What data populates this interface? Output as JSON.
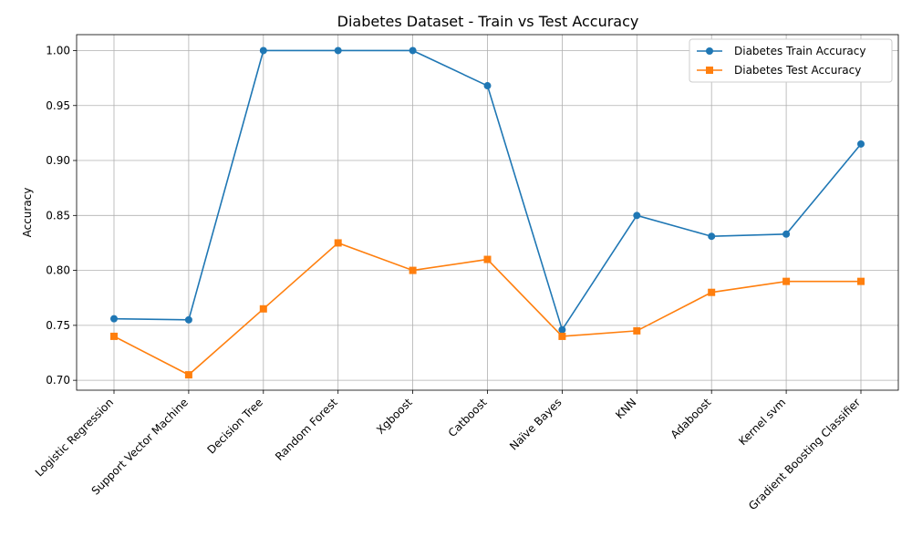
{
  "chart_data": {
    "type": "line",
    "title": "Diabetes Dataset - Train vs Test Accuracy",
    "xlabel": "",
    "ylabel": "Accuracy",
    "categories": [
      "Logistic Regression",
      "Support Vector Machine",
      "Decision Tree",
      "Random Forest",
      "Xgboost",
      "Catboost",
      "Naïve Bayes",
      "KNN",
      "Adaboost",
      "Kernel svm",
      "Gradient Boosting Classifier"
    ],
    "ylim": [
      0.691,
      1.0145
    ],
    "yticks": [
      0.7,
      0.75,
      0.8,
      0.85,
      0.9,
      0.95,
      1.0
    ],
    "ytick_labels": [
      "0.70",
      "0.75",
      "0.80",
      "0.85",
      "0.90",
      "0.95",
      "1.00"
    ],
    "grid": true,
    "legend_position": "top-right",
    "series": [
      {
        "name": "Diabetes Train Accuracy",
        "color": "#1f77b4",
        "marker": "circle",
        "values": [
          0.756,
          0.755,
          1.0,
          1.0,
          1.0,
          0.968,
          0.746,
          0.85,
          0.831,
          0.833,
          0.915
        ]
      },
      {
        "name": "Diabetes Test Accuracy",
        "color": "#ff7f0e",
        "marker": "square",
        "values": [
          0.74,
          0.705,
          0.765,
          0.825,
          0.8,
          0.81,
          0.74,
          0.745,
          0.78,
          0.79,
          0.79
        ]
      }
    ]
  }
}
